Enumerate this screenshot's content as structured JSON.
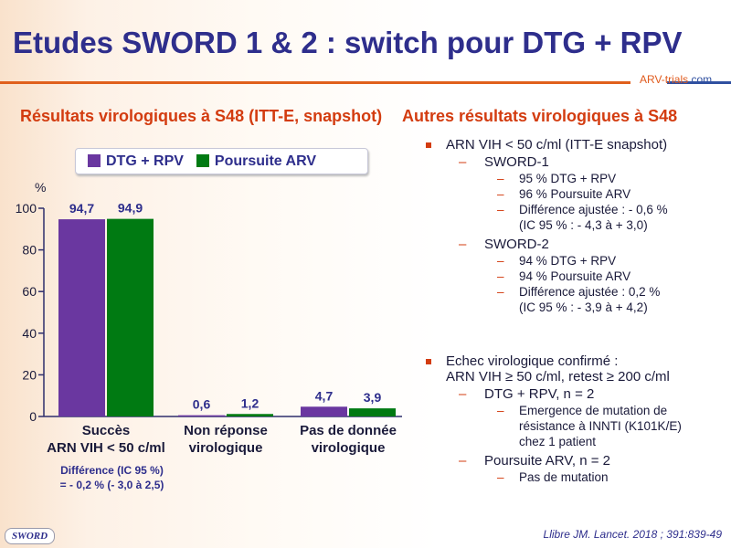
{
  "title": "Etudes SWORD 1 & 2 : switch pour DTG + RPV",
  "logo_text": "ARV-trials",
  "logo_domain": ".com",
  "left_heading": "Résultats virologiques à S48 (ITT-E, snapshot)",
  "right_heading": "Autres résultats virologiques à S48",
  "chart_data": {
    "type": "bar",
    "ylabel": "%",
    "ylim": [
      0,
      100
    ],
    "yticks": [
      0,
      20,
      40,
      60,
      80,
      100
    ],
    "categories": [
      "Succès\nARN VIH < 50 c/ml",
      "Non réponse\nvirologique",
      "Pas de donnée\nvirologique"
    ],
    "category_lines": [
      [
        "Succès",
        "ARN VIH < 50 c/ml"
      ],
      [
        "Non réponse",
        "virologique"
      ],
      [
        "Pas de donnée",
        "virologique"
      ]
    ],
    "series": [
      {
        "name": "DTG + RPV",
        "color": "#6a37a0",
        "values": [
          94.7,
          0.6,
          4.7
        ],
        "labels": [
          "94,7",
          "0,6",
          "4,7"
        ]
      },
      {
        "name": "Poursuite ARV",
        "color": "#007a12",
        "values": [
          94.9,
          1.2,
          3.9
        ],
        "labels": [
          "94,9",
          "1,2",
          "3,9"
        ]
      }
    ],
    "legend": "top",
    "annotation": [
      "Différence (IC 95 %)",
      "= - 0,2 % (- 3,0 à 2,5)"
    ]
  },
  "right": {
    "b1": "ARN VIH < 50 c/ml (ITT-E snapshot)",
    "s1": "SWORD-1",
    "s1_items": [
      "95 % DTG + RPV",
      "96 % Poursuite ARV",
      "Différence ajustée : - 0,6 %",
      "(IC 95 % : - 4,3 à + 3,0)"
    ],
    "s2": "SWORD-2",
    "s2_items": [
      "94 % DTG + RPV",
      "94 % Poursuite ARV",
      "Différence ajustée : 0,2 %",
      "(IC 95 % : - 3,9 à + 4,2)"
    ],
    "b2a": "Echec virologique confirmé :",
    "b2b": "ARN VIH ≥ 50 c/ml, retest ≥ 200 c/ml",
    "s3": "DTG + RPV, n = 2",
    "s3_items": [
      "Emergence de mutation de",
      "résistance à INNTI (K101K/E)",
      "chez 1 patient"
    ],
    "s4": "Poursuite ARV, n = 2",
    "s4_items": [
      "Pas de mutation"
    ]
  },
  "footer_badge": "SWORD",
  "reference": "Llibre JM. Lancet. 2018 ; 391:839-49"
}
